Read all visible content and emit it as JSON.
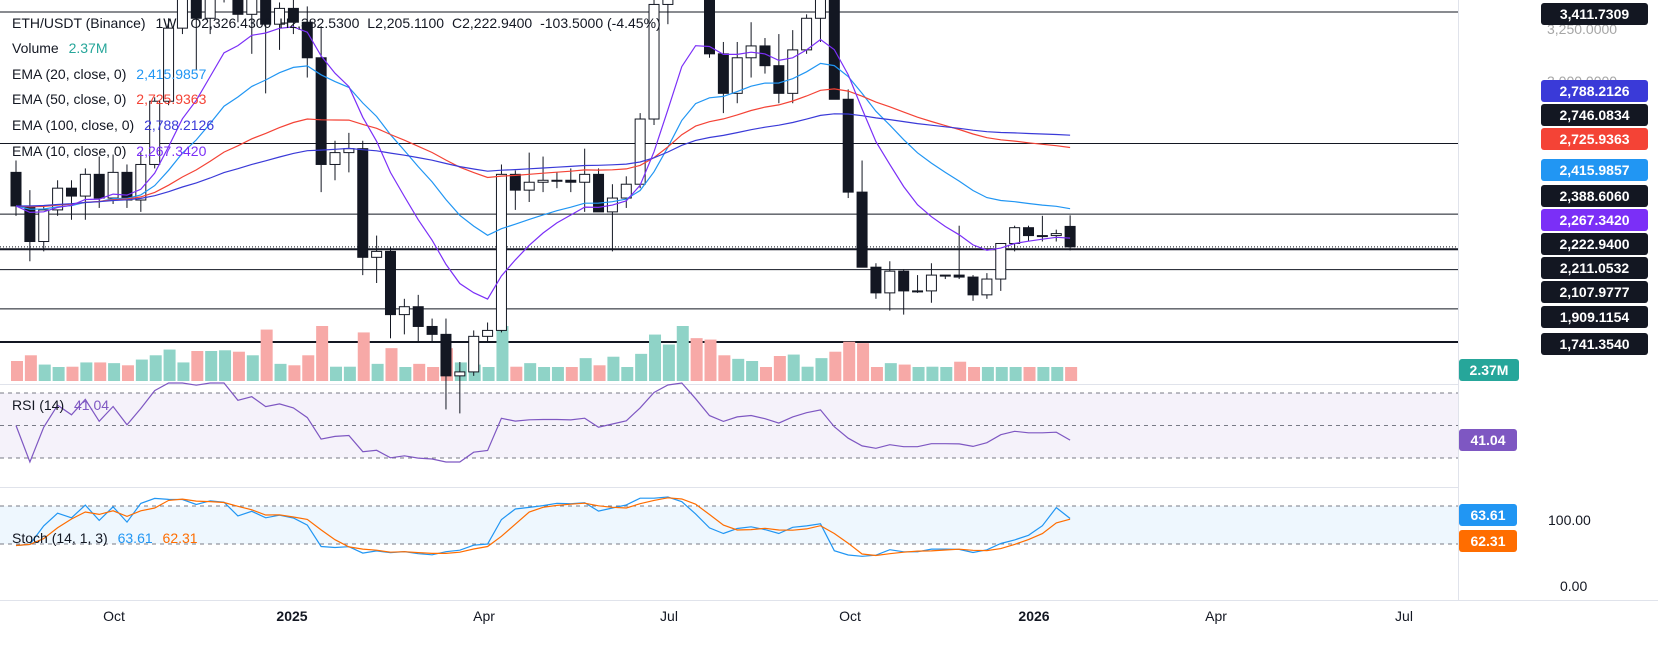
{
  "header": {
    "symbol": "ETH/USDT (Binance)",
    "interval": "1W",
    "open": "O2,326.4300",
    "high": "H2,382.5300",
    "low": "L2,205.1100",
    "close": "C2,222.9400",
    "change": "-103.5000 (-4.45%)"
  },
  "indicators": [
    {
      "label": "Volume",
      "value": "2.37M",
      "color": "#26a69a"
    },
    {
      "label": "EMA (20, close, 0)",
      "value": "2,415.9857",
      "color": "#2196f3"
    },
    {
      "label": "EMA (50, close, 0)",
      "value": "2,725.9363",
      "color": "#f44336"
    },
    {
      "label": "EMA (100, close, 0)",
      "value": "2,788.2126",
      "color": "#3a3ad8"
    },
    {
      "label": "EMA (10, close, 0)",
      "value": "2,267.3420",
      "color": "#7b2ff7"
    }
  ],
  "price_axis": {
    "partial_labels": [
      "3,250.0000",
      "3,000.0000"
    ]
  },
  "price_tags": [
    {
      "value": "3,411.7309",
      "bg": "#131722",
      "fg": "#ffffff"
    },
    {
      "value": "2,788.2126",
      "bg": "#3a3ad8",
      "fg": "#ffffff"
    },
    {
      "value": "2,746.0834",
      "bg": "#131722",
      "fg": "#ffffff"
    },
    {
      "value": "2,725.9363",
      "bg": "#f44336",
      "fg": "#ffffff"
    },
    {
      "value": "2,415.9857",
      "bg": "#2196f3",
      "fg": "#ffffff"
    },
    {
      "value": "2,388.6060",
      "bg": "#131722",
      "fg": "#ffffff"
    },
    {
      "value": "2,267.3420",
      "bg": "#7b2ff7",
      "fg": "#ffffff"
    },
    {
      "value": "2,222.9400",
      "bg": "#131722",
      "fg": "#ffffff"
    },
    {
      "value": "2,211.0532",
      "bg": "#131722",
      "fg": "#ffffff"
    },
    {
      "value": "2,107.9777",
      "bg": "#131722",
      "fg": "#ffffff"
    },
    {
      "value": "1,909.1154",
      "bg": "#131722",
      "fg": "#ffffff"
    },
    {
      "value": "1,741.3540",
      "bg": "#131722",
      "fg": "#ffffff"
    },
    {
      "value": "2.37M",
      "bg": "#26a69a",
      "fg": "#ffffff"
    }
  ],
  "rsi": {
    "label": "RSI (14)",
    "value": "41.04",
    "color": "#7e57c2"
  },
  "stoch": {
    "label": "Stoch (14, 1, 3)",
    "k": "63.61",
    "d": "62.31",
    "k_color": "#2196f3",
    "d_color": "#ff6d00",
    "axis_top": "100.00",
    "axis_bottom": "0.00"
  },
  "x_axis": {
    "labels": [
      "Oct",
      "2025",
      "Apr",
      "Jul",
      "Oct",
      "2026",
      "Apr",
      "Jul"
    ]
  },
  "chart_data": {
    "type": "candlestick",
    "interval": "1W",
    "ohlc": [
      [
        2600,
        2660,
        2380,
        2430
      ],
      [
        2430,
        2510,
        2150,
        2250
      ],
      [
        2250,
        2430,
        2200,
        2410
      ],
      [
        2410,
        2560,
        2380,
        2520
      ],
      [
        2520,
        2560,
        2360,
        2480
      ],
      [
        2480,
        2620,
        2360,
        2590
      ],
      [
        2590,
        2680,
        2420,
        2470
      ],
      [
        2470,
        2690,
        2440,
        2600
      ],
      [
        2600,
        2640,
        2420,
        2460
      ],
      [
        2460,
        2700,
        2400,
        2640
      ],
      [
        2640,
        2980,
        2620,
        2960
      ],
      [
        2960,
        3380,
        2940,
        3330
      ],
      [
        3330,
        3560,
        3300,
        3500
      ],
      [
        3500,
        3540,
        3120,
        3380
      ],
      [
        3380,
        3720,
        3300,
        3620
      ],
      [
        3620,
        3890,
        3460,
        3740
      ],
      [
        3740,
        3770,
        3360,
        3400
      ],
      [
        3400,
        3560,
        3200,
        3520
      ],
      [
        3520,
        3720,
        3000,
        3350
      ],
      [
        3350,
        3460,
        3220,
        3430
      ],
      [
        3430,
        3520,
        3300,
        3360
      ],
      [
        3360,
        3440,
        3080,
        3180
      ],
      [
        3180,
        3340,
        2500,
        2640
      ],
      [
        2640,
        2760,
        2560,
        2700
      ],
      [
        2700,
        2800,
        2600,
        2720
      ],
      [
        2720,
        2760,
        2080,
        2170
      ],
      [
        2170,
        2280,
        2040,
        2200
      ],
      [
        2200,
        2220,
        1760,
        1880
      ],
      [
        1880,
        1960,
        1780,
        1920
      ],
      [
        1920,
        1980,
        1740,
        1820
      ],
      [
        1820,
        1860,
        1740,
        1780
      ],
      [
        1780,
        1860,
        1400,
        1570
      ],
      [
        1570,
        1640,
        1380,
        1590
      ],
      [
        1590,
        1800,
        1570,
        1770
      ],
      [
        1770,
        1840,
        1740,
        1800
      ],
      [
        1800,
        2640,
        1790,
        2590
      ],
      [
        2590,
        2610,
        2410,
        2510
      ],
      [
        2510,
        2700,
        2450,
        2550
      ],
      [
        2550,
        2680,
        2500,
        2560
      ],
      [
        2560,
        2600,
        2520,
        2560
      ],
      [
        2560,
        2620,
        2500,
        2550
      ],
      [
        2550,
        2720,
        2400,
        2590
      ],
      [
        2590,
        2620,
        2400,
        2400
      ],
      [
        2400,
        2540,
        2200,
        2470
      ],
      [
        2470,
        2580,
        2420,
        2540
      ],
      [
        2540,
        2900,
        2520,
        2870
      ],
      [
        2870,
        3490,
        2840,
        3450
      ],
      [
        3450,
        3860,
        3350,
        3860
      ]
    ],
    "series": [
      {
        "name": "EMA (20, close, 0)",
        "last": 2415.9857
      },
      {
        "name": "EMA (50, close, 0)",
        "last": 2725.9363
      },
      {
        "name": "EMA (100, close, 0)",
        "last": 2788.2126
      },
      {
        "name": "EMA (10, close, 0)",
        "last": 2267.342
      }
    ],
    "late_ohlc": [
      [
        3600,
        4300,
        3500,
        4100
      ],
      [
        4100,
        4200,
        3600,
        3700
      ],
      [
        3700,
        3760,
        3180,
        3200
      ],
      [
        3200,
        3260,
        2900,
        3000
      ],
      [
        3000,
        3260,
        2950,
        3180
      ],
      [
        3180,
        3360,
        3080,
        3240
      ],
      [
        3240,
        3280,
        3100,
        3140
      ],
      [
        3140,
        3300,
        2950,
        3000
      ],
      [
        3000,
        3320,
        2950,
        3220
      ],
      [
        3220,
        3400,
        3200,
        3380
      ],
      [
        3380,
        3580,
        3260,
        3490
      ],
      [
        3490,
        3490,
        3080,
        2970
      ],
      [
        2970,
        3020,
        2470,
        2500
      ],
      [
        2500,
        2660,
        2130,
        2120
      ],
      [
        2120,
        2140,
        1960,
        1990
      ],
      [
        1990,
        2150,
        1900,
        2100
      ],
      [
        2100,
        2110,
        1880,
        2000
      ],
      [
        2000,
        2080,
        1990,
        2000
      ],
      [
        2000,
        2140,
        1940,
        2080
      ],
      [
        2080,
        2080,
        2060,
        2080
      ],
      [
        2080,
        2330,
        2060,
        2070
      ],
      [
        2070,
        2080,
        1950,
        1980
      ],
      [
        1980,
        2090,
        1960,
        2060
      ],
      [
        2060,
        2110,
        2000,
        2240
      ],
      [
        2240,
        2330,
        2200,
        2320
      ],
      [
        2320,
        2330,
        2250,
        2280
      ],
      [
        2280,
        2380,
        2250,
        2280
      ],
      [
        2280,
        2310,
        2250,
        2290
      ],
      [
        2326.43,
        2382.53,
        2205.11,
        2222.94
      ]
    ],
    "horizontal_levels": [
      3411.7309,
      2746.0834,
      2388.606,
      2222.94,
      2211.0532,
      2107.9777,
      1909.1154,
      1741.354
    ],
    "volume": {
      "last": "2.37M"
    },
    "rsi": {
      "period": 14,
      "last": 41.04,
      "bands": [
        70,
        50,
        30
      ]
    },
    "stoch": {
      "params": [
        14,
        1,
        3
      ],
      "k_last": 63.61,
      "d_last": 62.31,
      "bands": [
        80,
        20
      ]
    },
    "x_ticks": [
      "Oct",
      "2025",
      "Apr",
      "Jul",
      "Oct",
      "2026",
      "Apr",
      "Jul"
    ]
  }
}
